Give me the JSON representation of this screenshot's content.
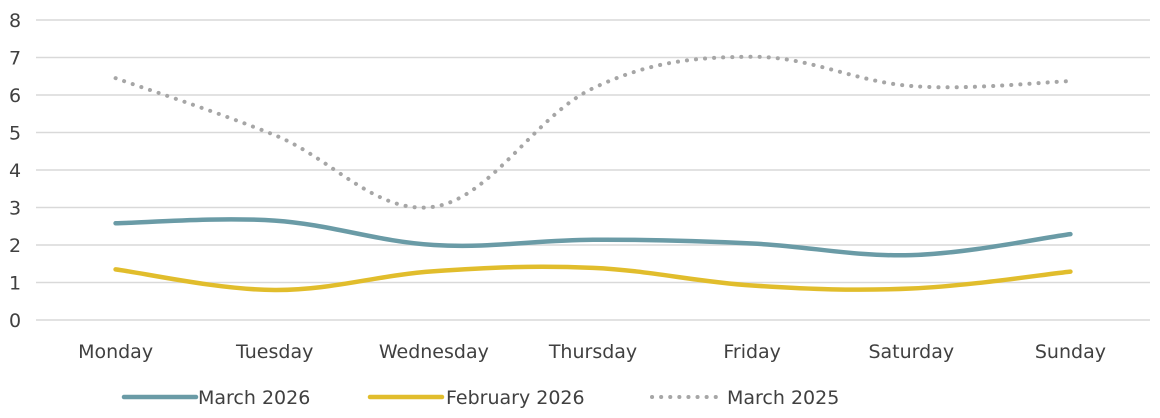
{
  "chart_data": {
    "type": "line",
    "categories": [
      "Monday",
      "Tuesday",
      "Wednesday",
      "Thursday",
      "Friday",
      "Saturday",
      "Sunday"
    ],
    "ylim": [
      0,
      8
    ],
    "yticks": [
      0,
      1,
      2,
      3,
      4,
      5,
      6,
      7,
      8
    ],
    "grid": true,
    "legend_position": "bottom",
    "series": [
      {
        "name": "March 2026",
        "values": [
          2.58,
          2.65,
          2.0,
          2.14,
          2.04,
          1.73,
          2.29
        ],
        "color": "#6a9ba6",
        "style": "solid"
      },
      {
        "name": "February 2026",
        "values": [
          1.35,
          0.8,
          1.3,
          1.39,
          0.92,
          0.84,
          1.29
        ],
        "color": "#e1bd2c",
        "style": "solid"
      },
      {
        "name": "March 2025",
        "values": [
          6.45,
          4.93,
          3.02,
          6.18,
          7.02,
          6.24,
          6.37
        ],
        "color": "#a6a6a6",
        "style": "dotted"
      }
    ]
  }
}
